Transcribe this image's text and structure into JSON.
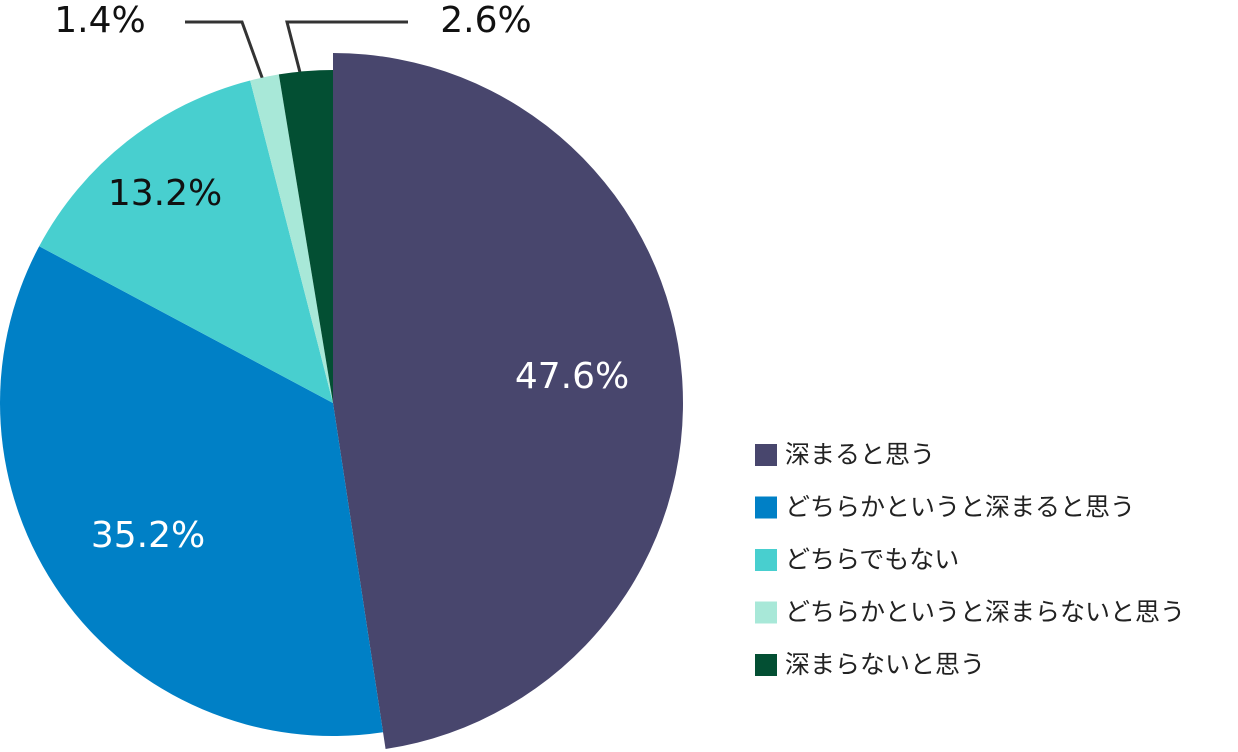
{
  "chart_data": {
    "type": "pie",
    "categories": [
      "深まると思う",
      "どちらかというと深まると思う",
      "どちらでもない",
      "どちらかというと深まらないと思う",
      "深まらないと思う"
    ],
    "values": [
      47.6,
      35.2,
      13.2,
      1.4,
      2.6
    ],
    "value_labels": [
      "47.6%",
      "35.2%",
      "13.2%",
      "1.4%",
      "2.6%"
    ],
    "colors": [
      "#48466d",
      "#0080c6",
      "#48cfcf",
      "#a8e8d8",
      "#034f33"
    ],
    "legend": "right"
  }
}
